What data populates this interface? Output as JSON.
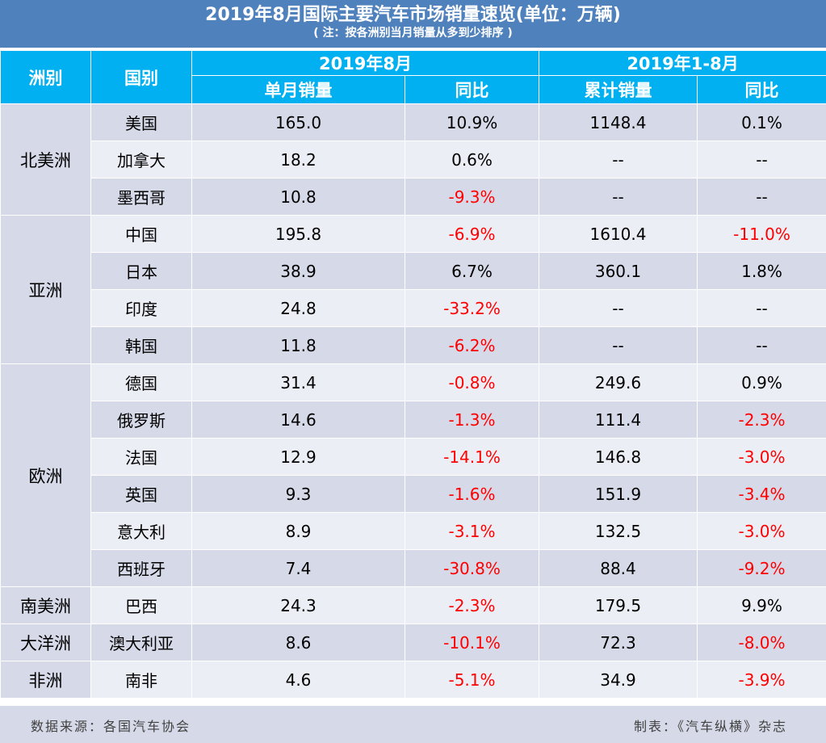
{
  "title": "2019年8月国际主要汽车市场销量速览(单位：万辆)",
  "note": "( 注：按各洲别当月销量从多到少排序 )",
  "headers": {
    "continent": "洲别",
    "country": "国别",
    "month_period": "2019年8月",
    "ytd_period": "2019年1-8月",
    "monthly_sales": "单月销量",
    "yoy": "同比",
    "cumulative_sales": "累计销量",
    "yoy2": "同比"
  },
  "groups": [
    {
      "continent": "北美洲",
      "rows": [
        {
          "country": "美国",
          "monthly": "165.0",
          "monthly_yoy": "10.9%",
          "cumulative": "1148.4",
          "cumulative_yoy": "0.1%"
        },
        {
          "country": "加拿大",
          "monthly": "18.2",
          "monthly_yoy": "0.6%",
          "cumulative": "--",
          "cumulative_yoy": "--"
        },
        {
          "country": "墨西哥",
          "monthly": "10.8",
          "monthly_yoy": "-9.3%",
          "cumulative": "--",
          "cumulative_yoy": "--"
        }
      ]
    },
    {
      "continent": "亚洲",
      "rows": [
        {
          "country": "中国",
          "monthly": "195.8",
          "monthly_yoy": "-6.9%",
          "cumulative": "1610.4",
          "cumulative_yoy": "-11.0%"
        },
        {
          "country": "日本",
          "monthly": "38.9",
          "monthly_yoy": "6.7%",
          "cumulative": "360.1",
          "cumulative_yoy": "1.8%"
        },
        {
          "country": "印度",
          "monthly": "24.8",
          "monthly_yoy": "-33.2%",
          "cumulative": "--",
          "cumulative_yoy": "--"
        },
        {
          "country": "韩国",
          "monthly": "11.8",
          "monthly_yoy": "-6.2%",
          "cumulative": "--",
          "cumulative_yoy": "--"
        }
      ]
    },
    {
      "continent": "欧洲",
      "rows": [
        {
          "country": "德国",
          "monthly": "31.4",
          "monthly_yoy": "-0.8%",
          "cumulative": "249.6",
          "cumulative_yoy": "0.9%"
        },
        {
          "country": "俄罗斯",
          "monthly": "14.6",
          "monthly_yoy": "-1.3%",
          "cumulative": "111.4",
          "cumulative_yoy": "-2.3%"
        },
        {
          "country": "法国",
          "monthly": "12.9",
          "monthly_yoy": "-14.1%",
          "cumulative": "146.8",
          "cumulative_yoy": "-3.0%"
        },
        {
          "country": "英国",
          "monthly": "9.3",
          "monthly_yoy": "-1.6%",
          "cumulative": "151.9",
          "cumulative_yoy": "-3.4%"
        },
        {
          "country": "意大利",
          "monthly": "8.9",
          "monthly_yoy": "-3.1%",
          "cumulative": "132.5",
          "cumulative_yoy": "-3.0%"
        },
        {
          "country": "西班牙",
          "monthly": "7.4",
          "monthly_yoy": "-30.8%",
          "cumulative": "88.4",
          "cumulative_yoy": "-9.2%"
        }
      ]
    },
    {
      "continent": "南美洲",
      "rows": [
        {
          "country": "巴西",
          "monthly": "24.3",
          "monthly_yoy": "-2.3%",
          "cumulative": "179.5",
          "cumulative_yoy": "9.9%"
        }
      ]
    },
    {
      "continent": "大洋洲",
      "rows": [
        {
          "country": "澳大利亚",
          "monthly": "8.6",
          "monthly_yoy": "-10.1%",
          "cumulative": "72.3",
          "cumulative_yoy": "-8.0%"
        }
      ]
    },
    {
      "continent": "非洲",
      "rows": [
        {
          "country": "南非",
          "monthly": "4.6",
          "monthly_yoy": "-5.1%",
          "cumulative": "34.9",
          "cumulative_yoy": "-3.9%"
        }
      ]
    }
  ],
  "footer": {
    "source": "数据来源：各国汽车协会",
    "producer": "制表：《汽车纵横》杂志"
  },
  "colors": {
    "title_bg": "#4f81bd",
    "header_bg": "#00b0f0",
    "row_dark": "#d6d9e7",
    "row_light": "#eceef5",
    "negative": "#ff0000"
  }
}
